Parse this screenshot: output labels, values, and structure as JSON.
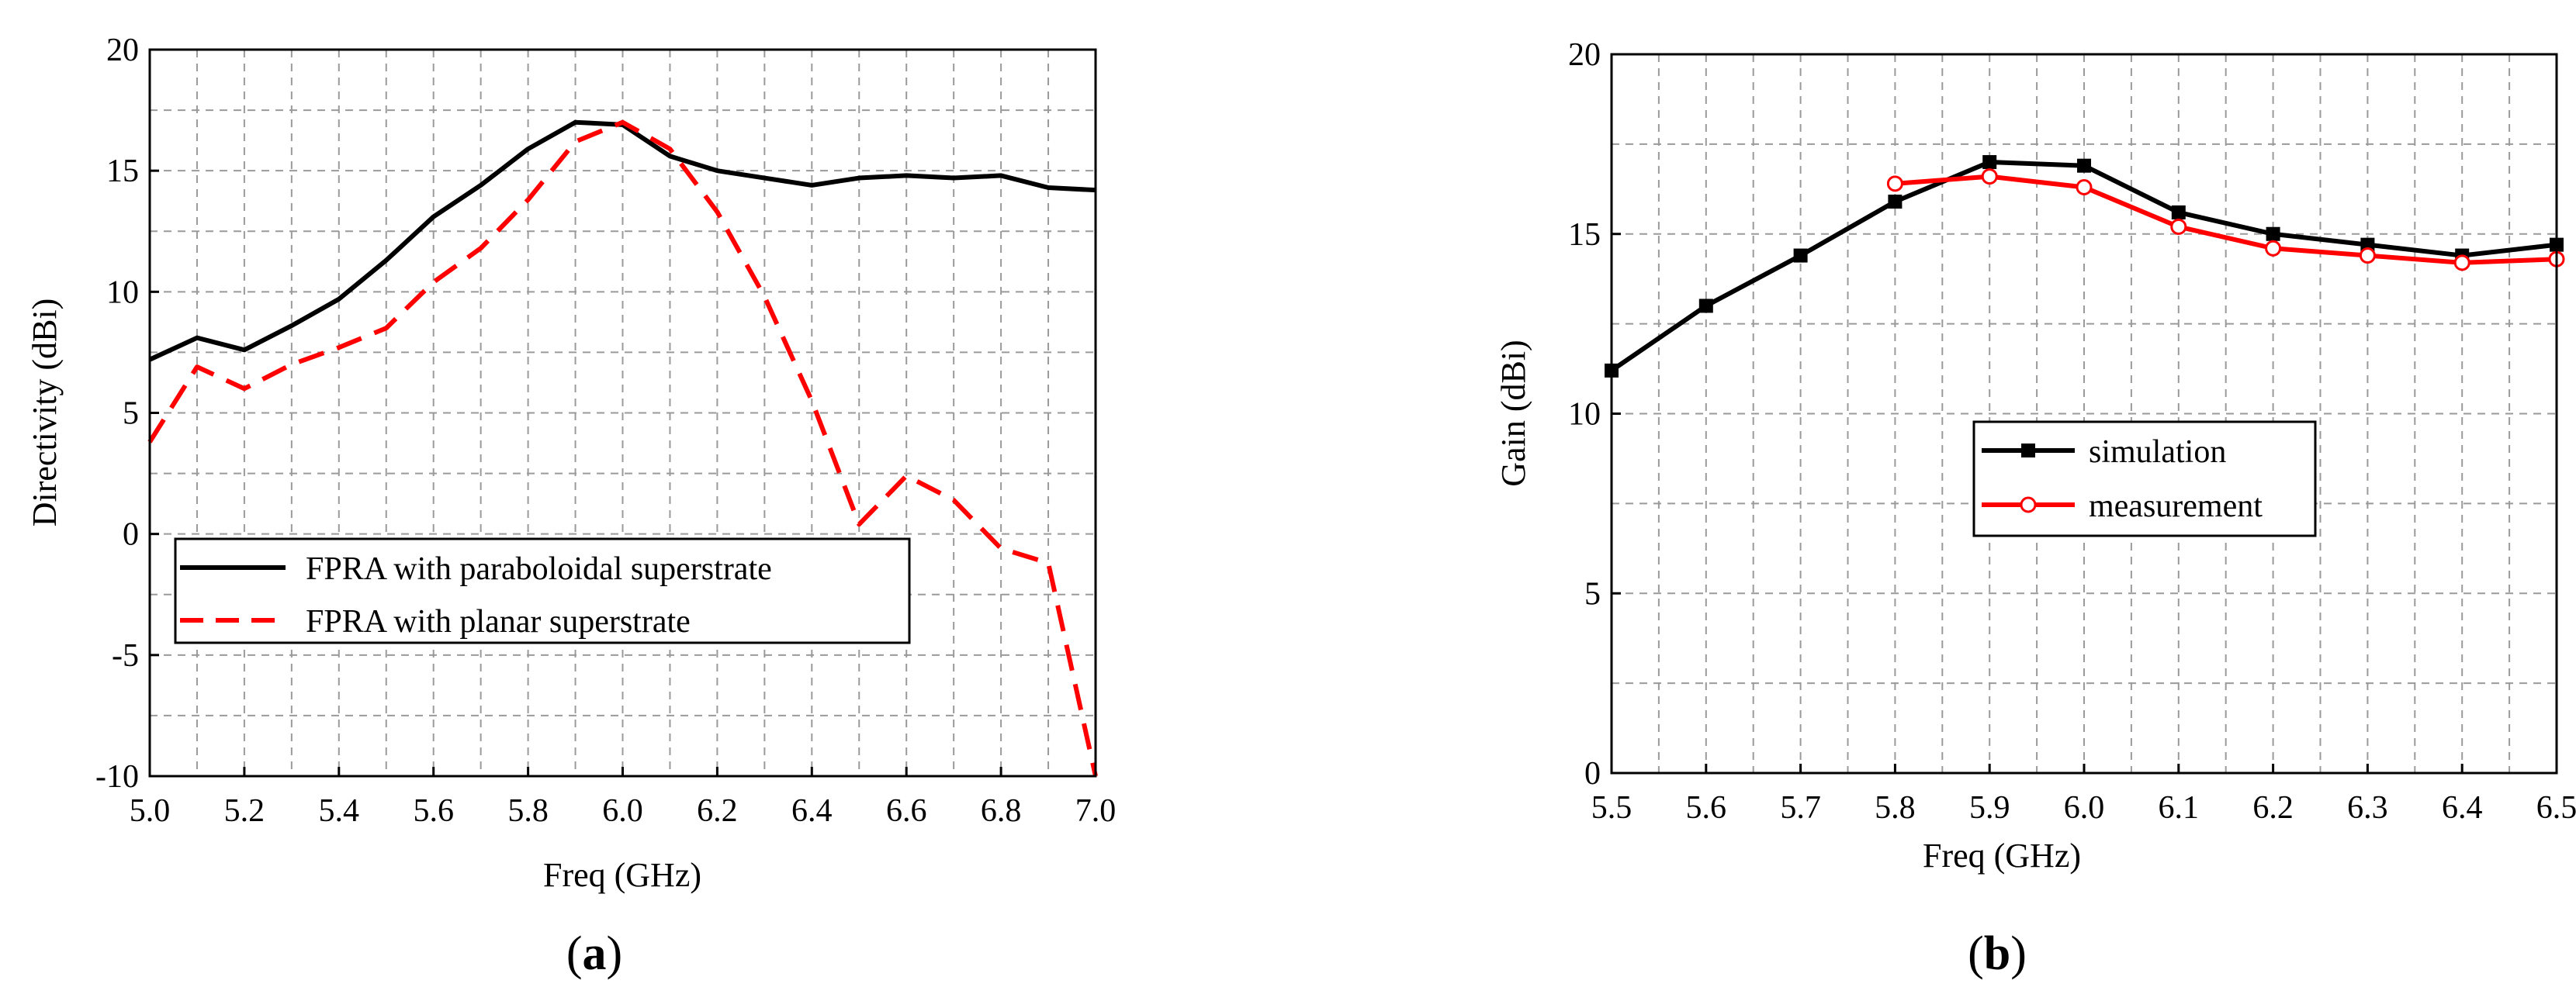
{
  "chart_data": [
    {
      "type": "line",
      "panel_label": "a",
      "xlabel": "Freq (GHz)",
      "ylabel": "Directivity (dBi)",
      "xlim": [
        5.0,
        7.0
      ],
      "ylim": [
        -10,
        20
      ],
      "xticks": [
        "5.0",
        "5.2",
        "5.4",
        "5.6",
        "5.8",
        "6.0",
        "6.2",
        "6.4",
        "6.6",
        "6.8",
        "7.0"
      ],
      "yticks": [
        "-10",
        "-5",
        "0",
        "5",
        "10",
        "15",
        "20"
      ],
      "grid": true,
      "legend_position": "lower-left",
      "series": [
        {
          "name": "FPRA with paraboloidal superstrate",
          "color": "#000000",
          "style": "solid",
          "x": [
            5.0,
            5.1,
            5.2,
            5.3,
            5.4,
            5.5,
            5.6,
            5.7,
            5.8,
            5.9,
            6.0,
            6.1,
            6.2,
            6.3,
            6.4,
            6.5,
            6.6,
            6.7,
            6.8,
            6.9,
            7.0
          ],
          "y": [
            7.2,
            8.1,
            7.6,
            8.6,
            9.7,
            11.3,
            13.1,
            14.4,
            15.9,
            17.0,
            16.9,
            15.6,
            15.0,
            14.7,
            14.4,
            14.7,
            14.8,
            14.7,
            14.8,
            14.3,
            14.2
          ]
        },
        {
          "name": "FPRA with planar superstrate",
          "color": "#ff0000",
          "style": "dashed",
          "x": [
            5.0,
            5.1,
            5.2,
            5.3,
            5.4,
            5.5,
            5.6,
            5.7,
            5.8,
            5.9,
            6.0,
            6.1,
            6.2,
            6.3,
            6.4,
            6.5,
            6.6,
            6.7,
            6.8,
            6.9,
            7.0
          ],
          "y": [
            3.8,
            6.9,
            6.0,
            7.0,
            7.7,
            8.5,
            10.4,
            11.8,
            13.8,
            16.2,
            17.0,
            15.9,
            13.3,
            9.8,
            5.5,
            0.4,
            2.4,
            1.4,
            -0.6,
            -1.2,
            -10.0
          ]
        }
      ]
    },
    {
      "type": "line",
      "panel_label": "b",
      "xlabel": "Freq (GHz)",
      "ylabel": "Gain (dBi)",
      "xlim": [
        5.5,
        6.5
      ],
      "ylim": [
        0,
        20
      ],
      "xticks": [
        "5.5",
        "5.6",
        "5.7",
        "5.8",
        "5.9",
        "6.0",
        "6.1",
        "6.2",
        "6.3",
        "6.4",
        "6.5"
      ],
      "yticks": [
        "0",
        "5",
        "10",
        "15",
        "20"
      ],
      "grid": true,
      "legend_position": "center",
      "series": [
        {
          "name": "simulation",
          "color": "#000000",
          "marker": "square",
          "x": [
            5.5,
            5.6,
            5.7,
            5.8,
            5.9,
            6.0,
            6.1,
            6.2,
            6.3,
            6.4,
            6.5
          ],
          "y": [
            11.2,
            13.0,
            14.4,
            15.9,
            17.0,
            16.9,
            15.6,
            15.0,
            14.7,
            14.4,
            14.7
          ]
        },
        {
          "name": "measurement",
          "color": "#ff0000",
          "marker": "circle",
          "x": [
            5.8,
            5.9,
            6.0,
            6.1,
            6.2,
            6.3,
            6.4,
            6.5
          ],
          "y": [
            16.4,
            16.6,
            16.3,
            15.2,
            14.6,
            14.4,
            14.2,
            14.3
          ]
        }
      ]
    }
  ]
}
